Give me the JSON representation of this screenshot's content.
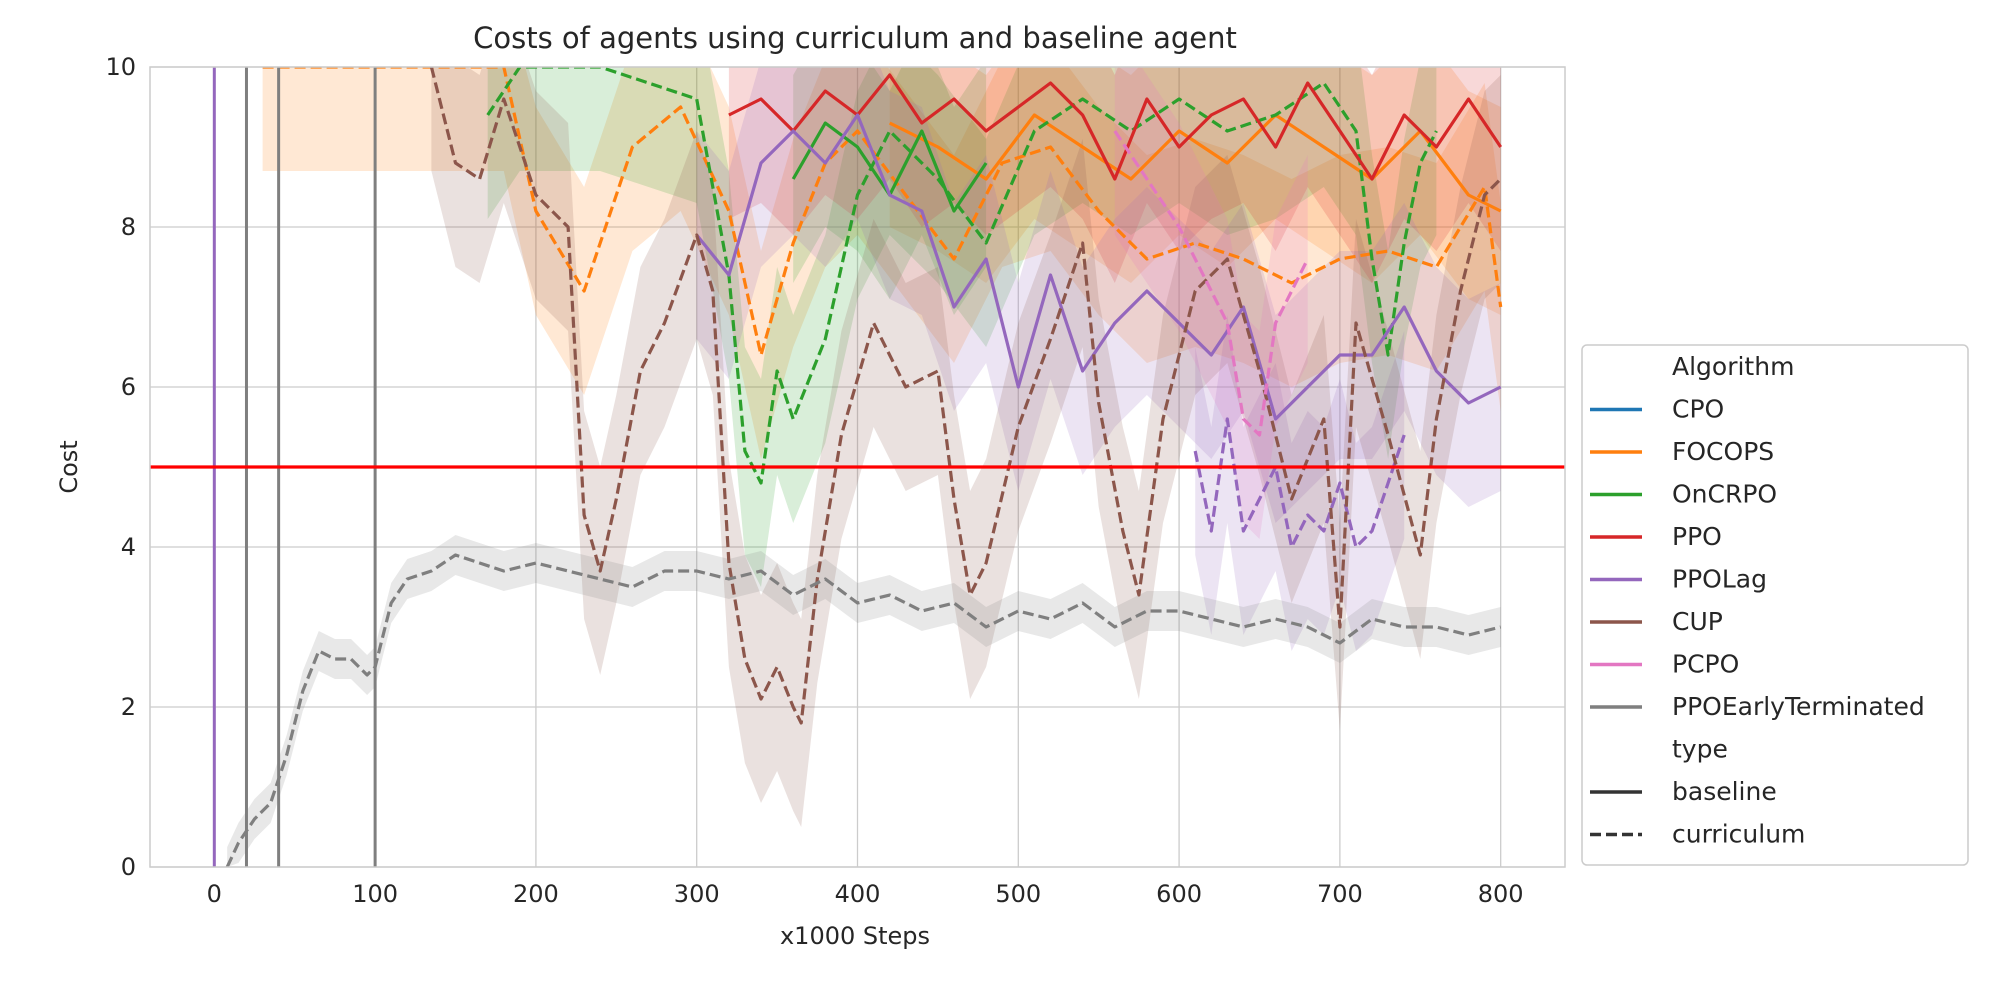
{
  "chart_data": {
    "type": "line",
    "title": "Costs of agents using curriculum and baseline agent",
    "xlabel": "x1000 Steps",
    "ylabel": "Cost",
    "xlim": [
      -40,
      840
    ],
    "ylim": [
      0,
      10
    ],
    "xticks": [
      0,
      100,
      200,
      300,
      400,
      500,
      600,
      700,
      800
    ],
    "yticks": [
      0,
      2,
      4,
      6,
      8,
      10
    ],
    "grid": true,
    "legend_position": "right, outside plot",
    "legend_title_algorithm": "Algorithm",
    "legend_title_type": "type",
    "threshold": {
      "y": 5,
      "color": "#ff0000"
    },
    "type_entries": [
      {
        "label": "baseline",
        "dash": "solid"
      },
      {
        "label": "curriculum",
        "dash": "dashed"
      }
    ],
    "series": [
      {
        "name": "CPO",
        "color": "#1f77b4"
      },
      {
        "name": "FOCOPS",
        "color": "#ff7f0e"
      },
      {
        "name": "OnCRPO",
        "color": "#2ca02c"
      },
      {
        "name": "PPO",
        "color": "#d62728"
      },
      {
        "name": "PPOLag",
        "color": "#9467bd"
      },
      {
        "name": "CUP",
        "color": "#8c564b"
      },
      {
        "name": "PCPO",
        "color": "#e377c2"
      },
      {
        "name": "PPOEarlyTerminated",
        "color": "#7f7f7f"
      }
    ],
    "lines": [
      {
        "algorithm": "FOCOPS",
        "type": "curriculum",
        "x": [
          30,
          60,
          90,
          120,
          150,
          180,
          200,
          230,
          260,
          290,
          320,
          340,
          360,
          380,
          400,
          430,
          460,
          490,
          520,
          550,
          580,
          610,
          640,
          670,
          700,
          730,
          760,
          790,
          800
        ],
        "y": [
          10.0,
          10.0,
          10.0,
          10.0,
          10.0,
          10.0,
          8.2,
          7.2,
          9.0,
          9.5,
          8.2,
          6.4,
          7.8,
          8.8,
          9.2,
          8.4,
          7.6,
          8.8,
          9.0,
          8.2,
          7.6,
          7.8,
          7.6,
          7.3,
          7.6,
          7.7,
          7.5,
          8.5,
          7.0
        ]
      },
      {
        "algorithm": "FOCOPS",
        "type": "baseline",
        "x": [
          420,
          450,
          480,
          510,
          540,
          570,
          600,
          630,
          660,
          690,
          720,
          750,
          780,
          800
        ],
        "y": [
          9.3,
          9.0,
          8.6,
          9.4,
          9.0,
          8.6,
          9.2,
          8.8,
          9.4,
          9.0,
          8.6,
          9.2,
          8.4,
          8.2
        ]
      },
      {
        "algorithm": "OnCRPO",
        "type": "curriculum",
        "x": [
          170,
          190,
          210,
          240,
          270,
          300,
          320,
          330,
          340,
          350,
          360,
          380,
          400,
          420,
          450,
          480,
          510,
          540,
          570,
          600,
          630,
          660,
          690,
          710,
          720,
          730,
          740,
          750,
          760
        ],
        "y": [
          9.4,
          10.0,
          10.0,
          10.0,
          9.8,
          9.6,
          7.4,
          5.2,
          4.8,
          6.2,
          5.6,
          6.6,
          8.4,
          9.2,
          8.6,
          7.8,
          9.2,
          9.6,
          9.2,
          9.6,
          9.2,
          9.4,
          9.8,
          9.2,
          7.6,
          6.4,
          7.8,
          8.8,
          9.2
        ]
      },
      {
        "algorithm": "OnCRPO",
        "type": "baseline",
        "x": [
          360,
          380,
          400,
          420,
          440,
          460,
          480
        ],
        "y": [
          8.6,
          9.3,
          9.0,
          8.4,
          9.2,
          8.2,
          8.8
        ]
      },
      {
        "algorithm": "PPO",
        "type": "baseline",
        "x": [
          320,
          340,
          360,
          380,
          400,
          420,
          440,
          460,
          480,
          500,
          520,
          540,
          560,
          580,
          600,
          620,
          640,
          660,
          680,
          700,
          720,
          740,
          760,
          780,
          800
        ],
        "y": [
          9.4,
          9.6,
          9.2,
          9.7,
          9.4,
          9.9,
          9.3,
          9.6,
          9.2,
          9.5,
          9.8,
          9.4,
          8.6,
          9.6,
          9.0,
          9.4,
          9.6,
          9.0,
          9.8,
          9.2,
          8.6,
          9.4,
          9.0,
          9.6,
          9.0
        ]
      },
      {
        "algorithm": "PPOLag",
        "type": "baseline",
        "x": [
          300,
          320,
          340,
          360,
          380,
          400,
          420,
          440,
          460,
          480,
          500,
          520,
          540,
          560,
          580,
          600,
          620,
          640,
          660,
          680,
          700,
          720,
          740,
          760,
          780,
          800
        ],
        "y": [
          7.9,
          7.4,
          8.8,
          9.2,
          8.8,
          9.4,
          8.4,
          8.2,
          7.0,
          7.6,
          6.0,
          7.4,
          6.2,
          6.8,
          7.2,
          6.8,
          6.4,
          7.0,
          5.6,
          6.0,
          6.4,
          6.4,
          7.0,
          6.2,
          5.8,
          6.0
        ]
      },
      {
        "algorithm": "PPOLag",
        "type": "curriculum",
        "x": [
          610,
          620,
          630,
          640,
          650,
          660,
          670,
          680,
          690,
          700,
          710,
          720,
          730,
          740
        ],
        "y": [
          5.2,
          4.2,
          5.6,
          4.2,
          4.6,
          5.0,
          4.0,
          4.4,
          4.2,
          4.8,
          4.0,
          4.2,
          4.8,
          5.4
        ]
      },
      {
        "algorithm": "CUP",
        "type": "curriculum",
        "x": [
          135,
          150,
          165,
          180,
          200,
          220,
          230,
          240,
          250,
          265,
          280,
          300,
          310,
          320,
          330,
          340,
          350,
          360,
          365,
          375,
          390,
          410,
          430,
          450,
          460,
          470,
          480,
          500,
          520,
          540,
          550,
          565,
          575,
          590,
          610,
          630,
          650,
          670,
          690,
          700,
          710,
          730,
          750,
          760,
          775,
          790,
          800
        ],
        "y": [
          10.0,
          8.8,
          8.6,
          9.6,
          8.4,
          8.0,
          4.4,
          3.7,
          4.6,
          6.2,
          6.8,
          7.9,
          7.2,
          3.8,
          2.6,
          2.1,
          2.5,
          2.0,
          1.8,
          3.6,
          5.4,
          6.8,
          6.0,
          6.2,
          4.6,
          3.4,
          3.8,
          5.5,
          6.6,
          7.8,
          5.8,
          4.2,
          3.4,
          5.6,
          7.2,
          7.6,
          6.2,
          4.6,
          5.6,
          3.0,
          6.8,
          5.4,
          3.9,
          5.6,
          7.2,
          8.4,
          8.6
        ]
      },
      {
        "algorithm": "PCPO",
        "type": "curriculum",
        "x": [
          560,
          580,
          600,
          620,
          630,
          640,
          650,
          660,
          680
        ],
        "y": [
          9.2,
          8.6,
          8.0,
          7.2,
          6.8,
          5.6,
          5.4,
          6.8,
          7.6
        ]
      },
      {
        "algorithm": "PPOEarlyTerminated",
        "type": "curriculum",
        "x": [
          8,
          15,
          25,
          35,
          45,
          55,
          65,
          75,
          85,
          95,
          100,
          110,
          120,
          135,
          150,
          165,
          180,
          200,
          220,
          240,
          260,
          280,
          300,
          320,
          340,
          360,
          380,
          400,
          420,
          440,
          460,
          480,
          500,
          520,
          540,
          560,
          580,
          600,
          620,
          640,
          660,
          680,
          700,
          720,
          740,
          760,
          780,
          800
        ],
        "y": [
          0.0,
          0.3,
          0.6,
          0.8,
          1.4,
          2.2,
          2.7,
          2.6,
          2.6,
          2.4,
          2.5,
          3.3,
          3.6,
          3.7,
          3.9,
          3.8,
          3.7,
          3.8,
          3.7,
          3.6,
          3.5,
          3.7,
          3.7,
          3.6,
          3.7,
          3.4,
          3.6,
          3.3,
          3.4,
          3.2,
          3.3,
          3.0,
          3.2,
          3.1,
          3.3,
          3.0,
          3.2,
          3.2,
          3.1,
          3.0,
          3.1,
          3.0,
          2.8,
          3.1,
          3.0,
          3.0,
          2.9,
          3.0
        ]
      }
    ],
    "vertical_segments": [
      {
        "algorithm": "PPOLag",
        "type": "baseline",
        "x": 0
      },
      {
        "algorithm": "PPOEarlyTerminated",
        "type": "baseline",
        "x": 20
      },
      {
        "algorithm": "PPOEarlyTerminated",
        "type": "baseline",
        "x": 40
      },
      {
        "algorithm": "PPOEarlyTerminated",
        "type": "baseline",
        "x": 100
      }
    ]
  }
}
